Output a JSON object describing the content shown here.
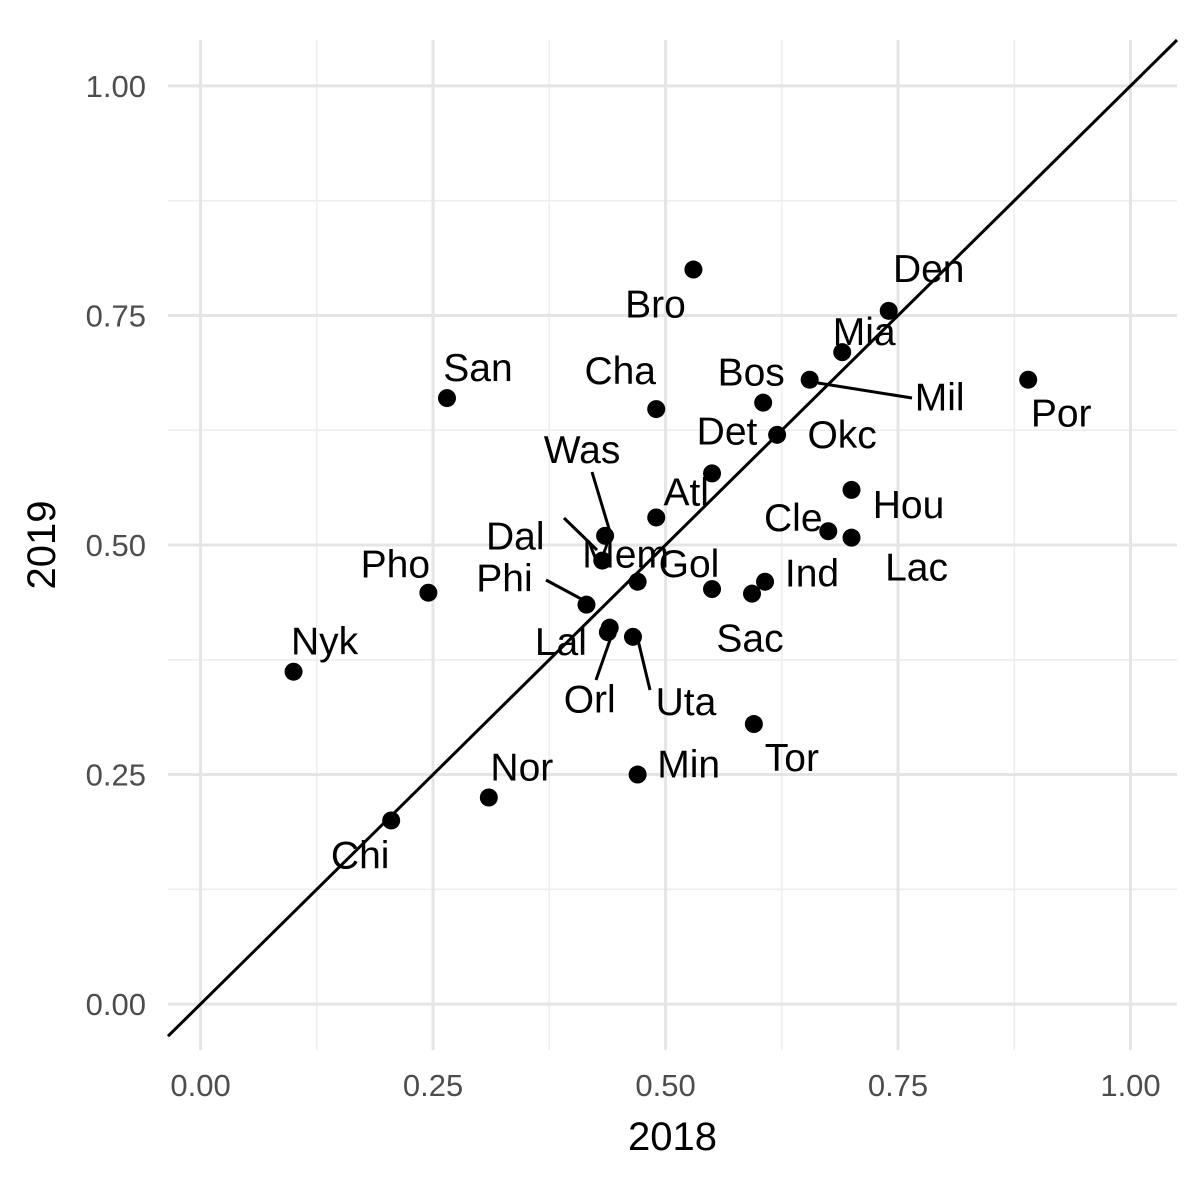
{
  "chart_data": {
    "type": "scatter",
    "xlabel": "2018",
    "ylabel": "2019",
    "xlim": [
      -0.035,
      1.05
    ],
    "ylim": [
      -0.05,
      1.05
    ],
    "x_ticks": [
      0.0,
      0.25,
      0.5,
      0.75,
      1.0
    ],
    "x_tick_labels": [
      "0.00",
      "0.25",
      "0.50",
      "0.75",
      "1.00"
    ],
    "y_ticks": [
      0.0,
      0.25,
      0.5,
      0.75,
      1.0
    ],
    "y_tick_labels": [
      "0.00",
      "0.25",
      "0.50",
      "0.75",
      "1.00"
    ],
    "grid": true,
    "reference_line": "y = x",
    "points": [
      {
        "label": "Bro",
        "x": 0.53,
        "y": 0.8
      },
      {
        "label": "Den",
        "x": 0.74,
        "y": 0.755
      },
      {
        "label": "Mia",
        "x": 0.69,
        "y": 0.71
      },
      {
        "label": "Mil",
        "x": 0.655,
        "y": 0.68
      },
      {
        "label": "Por",
        "x": 0.89,
        "y": 0.68
      },
      {
        "label": "San",
        "x": 0.265,
        "y": 0.66
      },
      {
        "label": "Cha",
        "x": 0.49,
        "y": 0.648
      },
      {
        "label": "Bos",
        "x": 0.605,
        "y": 0.655
      },
      {
        "label": "Det",
        "x": 0.55,
        "y": 0.578
      },
      {
        "label": "Okc",
        "x": 0.62,
        "y": 0.62
      },
      {
        "label": "Hou",
        "x": 0.7,
        "y": 0.56
      },
      {
        "label": "Cle",
        "x": 0.675,
        "y": 0.515
      },
      {
        "label": "Lac",
        "x": 0.7,
        "y": 0.508
      },
      {
        "label": "Atl",
        "x": 0.49,
        "y": 0.53
      },
      {
        "label": "Was",
        "x": 0.435,
        "y": 0.51
      },
      {
        "label": "Dal",
        "x": 0.432,
        "y": 0.483
      },
      {
        "label": "Mem",
        "x": 0.47,
        "y": 0.46
      },
      {
        "label": "Gol",
        "x": 0.55,
        "y": 0.452
      },
      {
        "label": "Ind",
        "x": 0.607,
        "y": 0.46
      },
      {
        "label": "Sac",
        "x": 0.593,
        "y": 0.447
      },
      {
        "label": "Pho",
        "x": 0.245,
        "y": 0.448
      },
      {
        "label": "Phi",
        "x": 0.415,
        "y": 0.435
      },
      {
        "label": "Lal",
        "x": 0.438,
        "y": 0.405
      },
      {
        "label": "Orl",
        "x": 0.44,
        "y": 0.41
      },
      {
        "label": "Uta",
        "x": 0.465,
        "y": 0.4
      },
      {
        "label": "Tor",
        "x": 0.595,
        "y": 0.305
      },
      {
        "label": "Nyk",
        "x": 0.1,
        "y": 0.362
      },
      {
        "label": "Min",
        "x": 0.47,
        "y": 0.25
      },
      {
        "label": "Nor",
        "x": 0.31,
        "y": 0.225
      },
      {
        "label": "Chi",
        "x": 0.205,
        "y": 0.2
      }
    ]
  }
}
